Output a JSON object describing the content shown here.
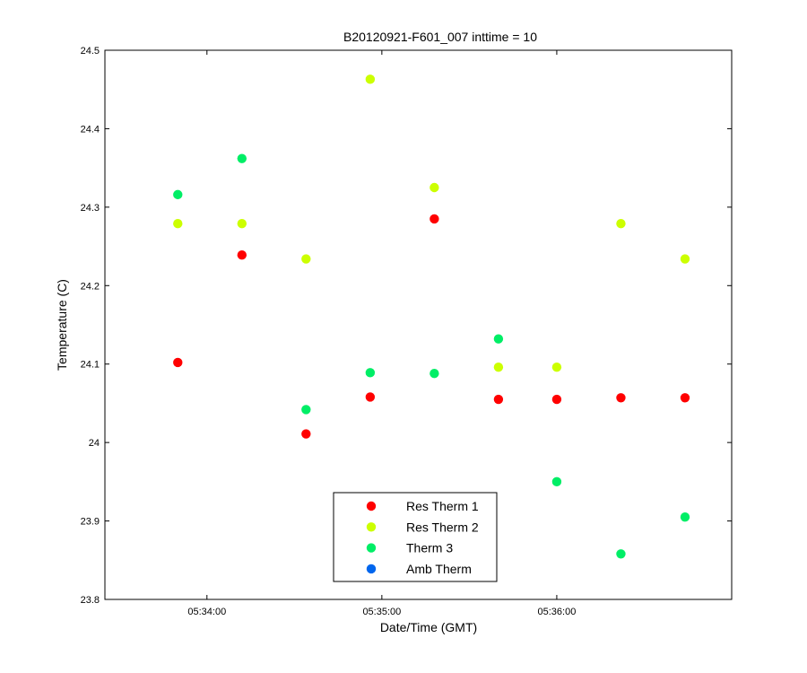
{
  "chart_data": {
    "type": "scatter",
    "title": "B20120921-F601_007 inttime = 10",
    "xlabel": "Date/Time (GMT)",
    "ylabel": "Temperature (C)",
    "xlim": [
      "05:33:25",
      "05:37:00"
    ],
    "ylim": [
      23.8,
      24.5
    ],
    "x_ticks": [
      "05:34:00",
      "05:35:00",
      "05:36:00"
    ],
    "y_ticks": [
      "23.8",
      "23.9",
      "24",
      "24.1",
      "24.2",
      "24.3",
      "24.4",
      "24.5"
    ],
    "grid": false,
    "legend_position": "bottom-center",
    "x": [
      "05:33:50",
      "05:34:12",
      "05:34:34",
      "05:34:56",
      "05:35:18",
      "05:35:40",
      "05:36:00",
      "05:36:22",
      "05:36:44"
    ],
    "series": [
      {
        "name": "Res Therm 1",
        "color": "#ff0000",
        "values": [
          24.102,
          24.239,
          24.011,
          24.058,
          24.285,
          24.055,
          24.055,
          24.057,
          24.057
        ]
      },
      {
        "name": "Res Therm 2",
        "color": "#ccff00",
        "values": [
          24.279,
          24.279,
          24.234,
          24.463,
          24.325,
          24.096,
          24.096,
          24.279,
          24.234
        ]
      },
      {
        "name": "Therm 3",
        "color": "#00ee66",
        "values": [
          24.316,
          24.362,
          24.042,
          24.089,
          24.088,
          24.132,
          23.95,
          23.858,
          23.905
        ]
      },
      {
        "name": "Amb Therm",
        "color": "#0066ee",
        "values": []
      }
    ]
  }
}
